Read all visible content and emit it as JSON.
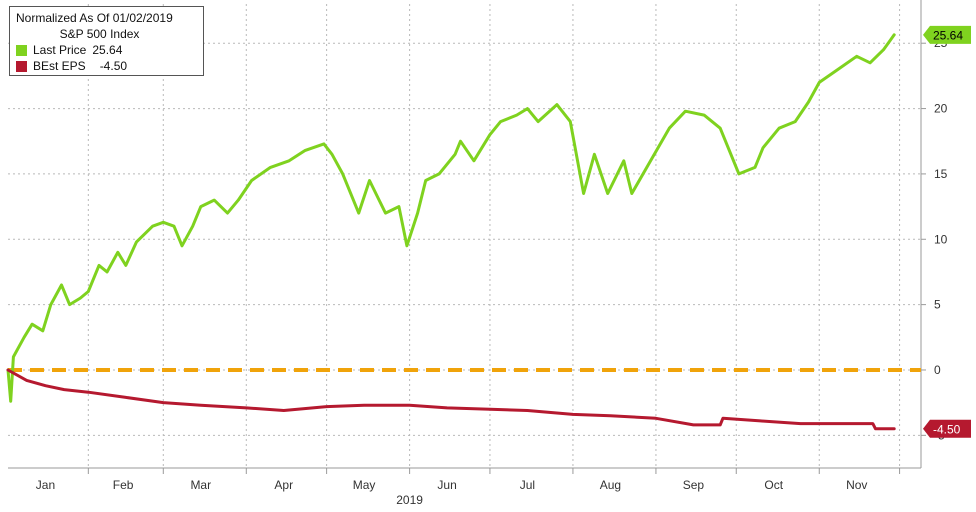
{
  "chart_data": {
    "type": "line",
    "legend_title": "Normalized As Of 01/02/2019",
    "legend_subtitle": "S&P 500 Index",
    "legend_position": "top-left",
    "year_label": "2019",
    "x_months": [
      "Jan",
      "Feb",
      "Mar",
      "Apr",
      "May",
      "Jun",
      "Jul",
      "Aug",
      "Sep",
      "Oct",
      "Nov"
    ],
    "y_ticks": [
      "-5",
      "0",
      "5",
      "10",
      "15",
      "20",
      "25"
    ],
    "ylim": [
      -7.5,
      28
    ],
    "y_axis_side": "right",
    "grid": true,
    "reference_line": {
      "value": 0,
      "color": "#f0a30a"
    },
    "series": [
      {
        "name": "Last Price",
        "last_value_label": "25.64",
        "color": "#7fd21f",
        "points": [
          [
            "2019-01-02",
            0.0
          ],
          [
            "2019-01-03",
            -2.4
          ],
          [
            "2019-01-04",
            1.0
          ],
          [
            "2019-01-08",
            2.5
          ],
          [
            "2019-01-11",
            3.5
          ],
          [
            "2019-01-15",
            3.0
          ],
          [
            "2019-01-18",
            5.0
          ],
          [
            "2019-01-22",
            6.5
          ],
          [
            "2019-01-25",
            5.0
          ],
          [
            "2019-01-29",
            5.5
          ],
          [
            "2019-02-01",
            6.0
          ],
          [
            "2019-02-05",
            8.0
          ],
          [
            "2019-02-08",
            7.5
          ],
          [
            "2019-02-12",
            9.0
          ],
          [
            "2019-02-15",
            8.0
          ],
          [
            "2019-02-19",
            9.8
          ],
          [
            "2019-02-25",
            11.0
          ],
          [
            "2019-03-01",
            11.3
          ],
          [
            "2019-03-05",
            11.0
          ],
          [
            "2019-03-08",
            9.5
          ],
          [
            "2019-03-12",
            11.0
          ],
          [
            "2019-03-15",
            12.5
          ],
          [
            "2019-03-20",
            13.0
          ],
          [
            "2019-03-25",
            12.0
          ],
          [
            "2019-03-29",
            13.0
          ],
          [
            "2019-04-03",
            14.5
          ],
          [
            "2019-04-10",
            15.5
          ],
          [
            "2019-04-17",
            16.0
          ],
          [
            "2019-04-23",
            16.8
          ],
          [
            "2019-04-30",
            17.3
          ],
          [
            "2019-05-03",
            16.5
          ],
          [
            "2019-05-07",
            15.0
          ],
          [
            "2019-05-13",
            12.0
          ],
          [
            "2019-05-17",
            14.5
          ],
          [
            "2019-05-23",
            12.0
          ],
          [
            "2019-05-28",
            12.5
          ],
          [
            "2019-05-31",
            9.5
          ],
          [
            "2019-06-04",
            12.0
          ],
          [
            "2019-06-07",
            14.5
          ],
          [
            "2019-06-12",
            15.0
          ],
          [
            "2019-06-18",
            16.5
          ],
          [
            "2019-06-20",
            17.5
          ],
          [
            "2019-06-25",
            16.0
          ],
          [
            "2019-07-01",
            18.0
          ],
          [
            "2019-07-05",
            19.0
          ],
          [
            "2019-07-11",
            19.5
          ],
          [
            "2019-07-15",
            20.0
          ],
          [
            "2019-07-19",
            19.0
          ],
          [
            "2019-07-26",
            20.3
          ],
          [
            "2019-07-31",
            19.0
          ],
          [
            "2019-08-05",
            13.5
          ],
          [
            "2019-08-09",
            16.5
          ],
          [
            "2019-08-14",
            13.5
          ],
          [
            "2019-08-20",
            16.0
          ],
          [
            "2019-08-23",
            13.5
          ],
          [
            "2019-08-30",
            16.0
          ],
          [
            "2019-09-06",
            18.5
          ],
          [
            "2019-09-12",
            19.8
          ],
          [
            "2019-09-19",
            19.5
          ],
          [
            "2019-09-25",
            18.5
          ],
          [
            "2019-10-02",
            15.0
          ],
          [
            "2019-10-08",
            15.5
          ],
          [
            "2019-10-11",
            17.0
          ],
          [
            "2019-10-17",
            18.5
          ],
          [
            "2019-10-23",
            19.0
          ],
          [
            "2019-10-28",
            20.5
          ],
          [
            "2019-11-01",
            22.0
          ],
          [
            "2019-11-08",
            23.0
          ],
          [
            "2019-11-15",
            24.0
          ],
          [
            "2019-11-20",
            23.5
          ],
          [
            "2019-11-25",
            24.5
          ],
          [
            "2019-11-29",
            25.64
          ]
        ]
      },
      {
        "name": "BEst EPS",
        "last_value_label": "-4.50",
        "color": "#b5192f",
        "points": [
          [
            "2019-01-02",
            0.0
          ],
          [
            "2019-01-09",
            -0.8
          ],
          [
            "2019-01-16",
            -1.2
          ],
          [
            "2019-01-23",
            -1.5
          ],
          [
            "2019-02-01",
            -1.7
          ],
          [
            "2019-02-15",
            -2.1
          ],
          [
            "2019-03-01",
            -2.5
          ],
          [
            "2019-03-15",
            -2.7
          ],
          [
            "2019-04-01",
            -2.9
          ],
          [
            "2019-04-15",
            -3.1
          ],
          [
            "2019-05-01",
            -2.8
          ],
          [
            "2019-05-15",
            -2.7
          ],
          [
            "2019-06-01",
            -2.7
          ],
          [
            "2019-06-15",
            -2.9
          ],
          [
            "2019-07-01",
            -3.0
          ],
          [
            "2019-07-15",
            -3.1
          ],
          [
            "2019-08-01",
            -3.4
          ],
          [
            "2019-08-15",
            -3.5
          ],
          [
            "2019-09-01",
            -3.7
          ],
          [
            "2019-09-15",
            -4.2
          ],
          [
            "2019-09-25",
            -4.2
          ],
          [
            "2019-09-26",
            -3.7
          ],
          [
            "2019-10-10",
            -3.9
          ],
          [
            "2019-10-25",
            -4.1
          ],
          [
            "2019-11-10",
            -4.1
          ],
          [
            "2019-11-21",
            -4.1
          ],
          [
            "2019-11-22",
            -4.5
          ],
          [
            "2019-11-29",
            -4.5
          ]
        ]
      }
    ]
  }
}
